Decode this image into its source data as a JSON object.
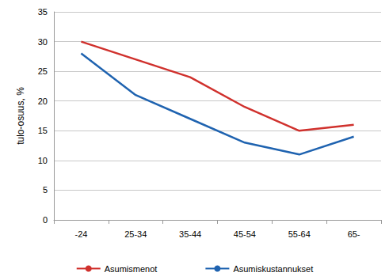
{
  "chart_data": {
    "type": "line",
    "y_label": "tulo-osuus, %",
    "categories": [
      "-24",
      "25-34",
      "35-44",
      "45-54",
      "55-64",
      "65-"
    ],
    "series": [
      {
        "name": "Asumismenot",
        "color": "#d0312d",
        "values": [
          30,
          27,
          24,
          19,
          15,
          16
        ]
      },
      {
        "name": "Asumiskustannukset",
        "color": "#1f63b0",
        "values": [
          28,
          21,
          17,
          13,
          11,
          14
        ]
      }
    ],
    "ylim": [
      0,
      35
    ],
    "yticks": [
      0,
      5,
      10,
      15,
      20,
      25,
      30,
      35
    ],
    "grid": true,
    "legend": "bottom"
  }
}
